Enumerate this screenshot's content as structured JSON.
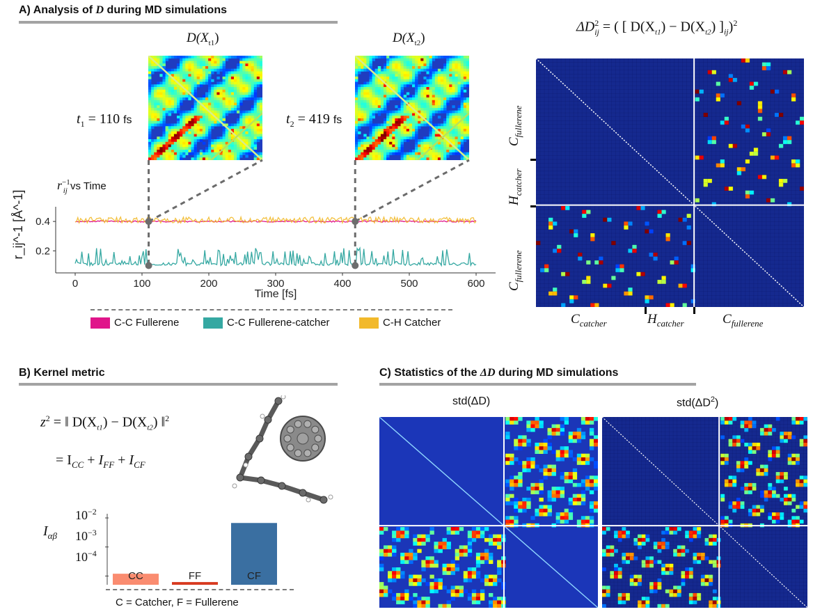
{
  "panel_a": {
    "title": "A) Analysis of D during MD simulations",
    "title_prefix": "A) Analysis of ",
    "title_var": "D",
    "title_suffix": " during MD simulations",
    "map1_title": "D(X",
    "map1_sub": "t1",
    "map2_title": "D(X",
    "map2_sub": "t2",
    "t1_var": "t",
    "t1_sub": "1",
    "t1_value": "= 110",
    "t1_unit": "fs",
    "t2_var": "t",
    "t2_sub": "2",
    "t2_value": "= 419",
    "t2_unit": "fs",
    "plot_title_var": "r",
    "plot_title_sub": "ij",
    "plot_title_sup": "−1",
    "plot_title_suffix": " vs Time",
    "big_map_formula_lhs": "ΔD",
    "big_map_formula_sub": "ij",
    "big_map_formula_sup": "2",
    "big_map_formula_rhs": "= ( [ D(X",
    "big_map_formula_mid": ") − D(X",
    "big_map_formula_end": ") ]",
    "big_map_formula_end_sub": "ij",
    "big_map_formula_end_sup": "2",
    "big_map_formula_close": ")",
    "axis_labels_left": [
      "C",
      "H",
      "C"
    ],
    "axis_labels_left_subs": [
      "fullerene",
      "catcher",
      "fullerene"
    ],
    "axis_labels_bottom": [
      "C",
      "H",
      "C"
    ],
    "axis_labels_bottom_subs": [
      "catcher",
      "catcher",
      "fullerene"
    ]
  },
  "panel_b": {
    "title": "B) Kernel metric",
    "eq1_lhs": "z",
    "eq1_sup": "2",
    "eq1_rhs": "= ‖ D(X",
    "eq1_mid": ") − D(X",
    "eq1_end": ") ‖",
    "eq1_end_sup": "2",
    "eq2": "= I",
    "eq2_terms": [
      "CC",
      "FF",
      "CF"
    ],
    "bar_ylabel_var": "I",
    "bar_ylabel_sub": "αβ",
    "bar_yticks": [
      "10",
      "10",
      "10"
    ],
    "bar_ytick_exps": [
      "−2",
      "−3",
      "−4"
    ],
    "footnote": "C = Catcher, F = Fullerene"
  },
  "panel_c": {
    "title_prefix": "C) Statistics of the ",
    "title_var": "ΔD",
    "title_suffix": " during MD simulations",
    "map1_title": "std(ΔD)",
    "map2_title": "std(ΔD",
    "map2_sup": "2",
    "map2_title_end": ")"
  },
  "chart_data": [
    {
      "type": "line",
      "title": "r_ij^-1 vs Time",
      "xlabel": "Time [fs]",
      "ylabel": "r_ij^-1 [Å^-1]",
      "xlim": [
        0,
        600
      ],
      "ylim": [
        0.05,
        0.5
      ],
      "xticks": [
        0,
        100,
        200,
        300,
        400,
        500,
        600
      ],
      "yticks": [
        0.2,
        0.4
      ],
      "markers": [
        {
          "x": 110,
          "y": 0.4,
          "label": "t1"
        },
        {
          "x": 110,
          "y": 0.1,
          "label": "t1"
        },
        {
          "x": 419,
          "y": 0.4,
          "label": "t2"
        },
        {
          "x": 419,
          "y": 0.1,
          "label": "t2"
        }
      ],
      "series": [
        {
          "name": "C-C Fullerene",
          "color": "#e0158a",
          "mean": 0.4,
          "spread": 0.005
        },
        {
          "name": "C-C Fullerene-catcher",
          "color": "#35a8a2",
          "base": 0.1,
          "peak": 0.22
        },
        {
          "name": "C-H Catcher",
          "color": "#f2b92b",
          "mean": 0.41,
          "spread": 0.02
        }
      ]
    },
    {
      "type": "bar",
      "categories": [
        "CC",
        "FF",
        "CF"
      ],
      "values": [
        0.00012,
        6.2e-05,
        0.0067
      ],
      "colors": [
        "#fa8c70",
        "#d83a20",
        "#3a6fa1"
      ],
      "yscale": "log",
      "ylim": [
        5e-05,
        0.01
      ],
      "ylabel": "I_αβ"
    }
  ],
  "legend": [
    "C-C Fullerene",
    "C-C Fullerene-catcher",
    "C-H Catcher"
  ],
  "colors": {
    "heatmap_bg": "#1c35b3",
    "heatmap_dark": "#142a8e",
    "rule": "#a3a3a3"
  }
}
